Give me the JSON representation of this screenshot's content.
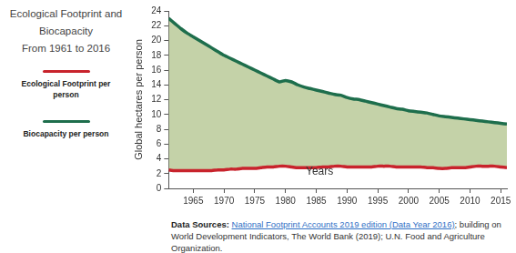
{
  "chart_data": {
    "type": "line",
    "title": [
      "Ecological Footprint and",
      "Biocapacity",
      "From 1961 to 2016"
    ],
    "x_label": "Years",
    "y_label": "Global hectares per person",
    "x": [
      1961,
      1962,
      1963,
      1964,
      1965,
      1966,
      1967,
      1968,
      1969,
      1970,
      1971,
      1972,
      1973,
      1974,
      1975,
      1976,
      1977,
      1978,
      1979,
      1980,
      1981,
      1982,
      1983,
      1984,
      1985,
      1986,
      1987,
      1988,
      1989,
      1990,
      1991,
      1992,
      1993,
      1994,
      1995,
      1996,
      1997,
      1998,
      1999,
      2000,
      2001,
      2002,
      2003,
      2004,
      2005,
      2006,
      2007,
      2008,
      2009,
      2010,
      2011,
      2012,
      2013,
      2014,
      2015,
      2016
    ],
    "series": [
      {
        "name": "Ecological Footprint per person",
        "color": "#c8232c",
        "values": [
          2.5,
          2.4,
          2.4,
          2.4,
          2.4,
          2.4,
          2.4,
          2.4,
          2.5,
          2.5,
          2.6,
          2.6,
          2.7,
          2.7,
          2.7,
          2.8,
          2.9,
          2.9,
          3.0,
          3.0,
          2.9,
          2.8,
          2.8,
          2.8,
          2.8,
          2.9,
          2.9,
          3.0,
          3.0,
          2.9,
          2.9,
          2.9,
          2.9,
          2.9,
          3.0,
          3.0,
          3.0,
          2.9,
          2.9,
          2.9,
          2.9,
          2.9,
          2.8,
          2.8,
          2.7,
          2.7,
          2.8,
          2.8,
          2.8,
          2.9,
          3.0,
          3.0,
          3.0,
          3.0,
          2.9,
          2.8
        ]
      },
      {
        "name": "Biocapacity per person",
        "color": "#1e6e4c",
        "values": [
          23.0,
          22.3,
          21.6,
          21.0,
          20.5,
          20.0,
          19.5,
          19.0,
          18.5,
          18.0,
          17.6,
          17.2,
          16.8,
          16.4,
          16.0,
          15.6,
          15.2,
          14.8,
          14.4,
          14.6,
          14.4,
          14.0,
          13.7,
          13.5,
          13.3,
          13.1,
          12.9,
          12.7,
          12.6,
          12.3,
          12.1,
          12.0,
          11.8,
          11.6,
          11.4,
          11.2,
          11.0,
          10.8,
          10.7,
          10.5,
          10.4,
          10.3,
          10.2,
          10.0,
          9.8,
          9.7,
          9.6,
          9.5,
          9.4,
          9.3,
          9.2,
          9.1,
          9.0,
          8.9,
          8.8,
          8.7
        ]
      }
    ],
    "xlim": [
      1961,
      2016
    ],
    "xticks": [
      1965,
      1970,
      1975,
      1980,
      1985,
      1990,
      1995,
      2000,
      2005,
      2010,
      2015
    ],
    "ylim": [
      0,
      24
    ],
    "yticks": [
      0,
      2,
      4,
      6,
      8,
      10,
      12,
      14,
      16,
      18,
      20,
      22,
      24
    ],
    "grid": false,
    "legend": "left",
    "source": {
      "label": "Data Sources:",
      "link": "National Footprint Accounts 2019 edition (Data Year 2016)",
      "text": "; building on World Development Indicators, The World Bank (2019); U.N. Food and Agriculture Organization."
    }
  }
}
